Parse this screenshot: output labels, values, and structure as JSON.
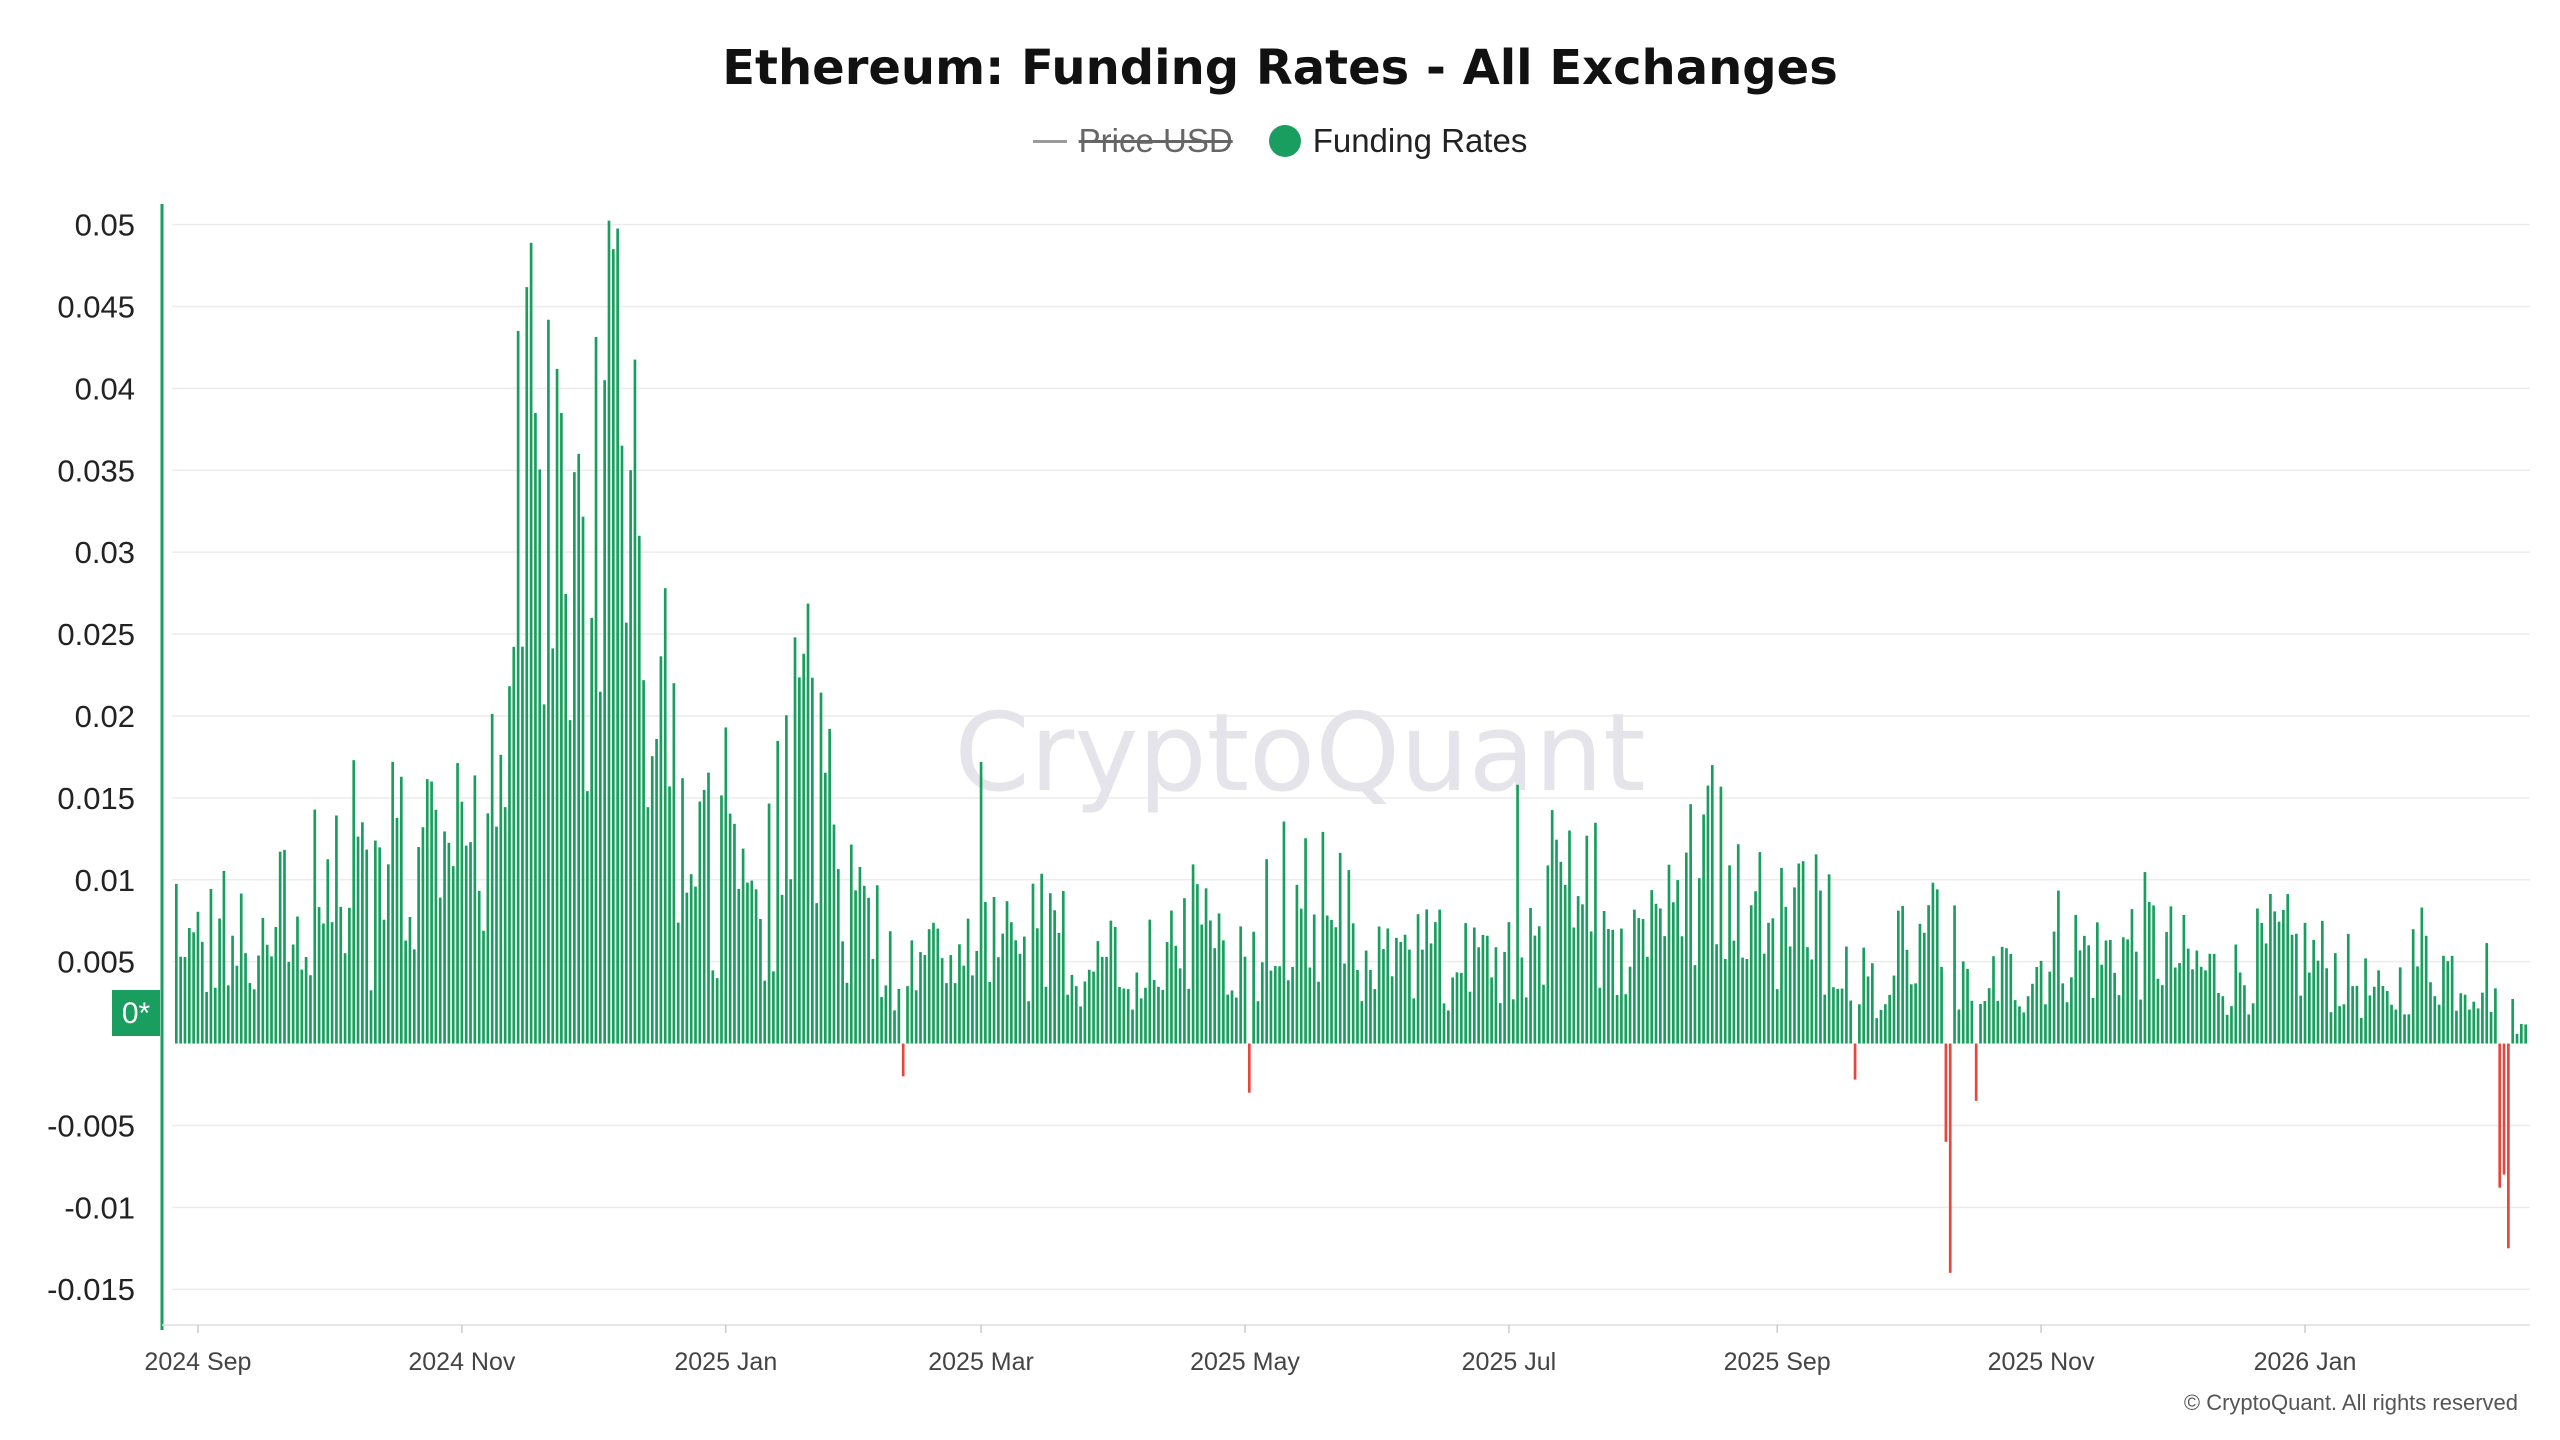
{
  "colors": {
    "positive": "#1a9e5f",
    "negative": "#e8453c",
    "legend_price": "#9a9a9a",
    "grid": "#ececec",
    "axis": "#1a9e5f"
  },
  "legend": [
    {
      "label": "Price USD",
      "icon": "line-icon",
      "disabled": true
    },
    {
      "label": "Funding Rates",
      "icon": "dot-icon",
      "disabled": false
    }
  ],
  "watermark": "CryptoQuant",
  "credit": "© CryptoQuant. All rights reserved",
  "zero_marker": "0*",
  "chart_data": {
    "type": "bar",
    "title": "Ethereum: Funding Rates - All Exchanges",
    "xlabel": "",
    "ylabel": "",
    "ylim": [
      -0.017,
      0.0515
    ],
    "x_range": [
      "2024-08-26",
      "2026-02-22"
    ],
    "y_ticks": [
      "0.05",
      "0.045",
      "0.04",
      "0.035",
      "0.03",
      "0.025",
      "0.02",
      "0.015",
      "0.01",
      "0.005",
      "-0.005",
      "-0.01",
      "-0.015"
    ],
    "y_tick_values": [
      0.05,
      0.045,
      0.04,
      0.035,
      0.03,
      0.025,
      0.02,
      0.015,
      0.01,
      0.005,
      -0.005,
      -0.01,
      -0.015
    ],
    "x_ticks": [
      "2024 Sep",
      "2024 Nov",
      "2025 Jan",
      "2025 Mar",
      "2025 May",
      "2025 Jul",
      "2025 Sep",
      "2025 Nov",
      "2026 Jan"
    ],
    "x_tick_dates": [
      "2024-09-01",
      "2024-11-01",
      "2025-01-01",
      "2025-03-01",
      "2025-05-01",
      "2025-07-01",
      "2025-09-01",
      "2025-11-01",
      "2026-01-01"
    ],
    "grid": true,
    "legend_position": "top-center",
    "series": [
      {
        "name": "Funding Rates",
        "color_positive": "#1a9e5f",
        "color_negative": "#e8453c",
        "anchors": [
          [
            "2024-08-27",
            0.0105
          ],
          [
            "2024-09-03",
            0.0062
          ],
          [
            "2024-09-10",
            0.0075
          ],
          [
            "2024-09-18",
            0.0058
          ],
          [
            "2024-09-25",
            0.0125
          ],
          [
            "2024-10-02",
            0.0095
          ],
          [
            "2024-10-10",
            0.0088
          ],
          [
            "2024-10-17",
            0.0115
          ],
          [
            "2024-10-24",
            0.0105
          ],
          [
            "2024-10-31",
            0.0118
          ],
          [
            "2024-11-07",
            0.0175
          ],
          [
            "2024-11-12",
            0.0285
          ],
          [
            "2024-11-16",
            0.034
          ],
          [
            "2024-11-21",
            0.032
          ],
          [
            "2024-11-26",
            0.031
          ],
          [
            "2024-12-02",
            0.0335
          ],
          [
            "2024-12-07",
            0.039
          ],
          [
            "2024-12-10",
            0.03
          ],
          [
            "2024-12-15",
            0.02
          ],
          [
            "2024-12-20",
            0.013
          ],
          [
            "2024-12-26",
            0.0108
          ],
          [
            "2025-01-03",
            0.0105
          ],
          [
            "2025-01-09",
            0.009
          ],
          [
            "2025-01-16",
            0.0145
          ],
          [
            "2025-01-21",
            0.0185
          ],
          [
            "2025-01-27",
            0.0095
          ],
          [
            "2025-02-02",
            0.008
          ],
          [
            "2025-02-06",
            0.0065
          ],
          [
            "2025-02-10",
            0.0035
          ],
          [
            "2025-02-20",
            0.0055
          ],
          [
            "2025-03-04",
            0.006
          ],
          [
            "2025-03-15",
            0.0068
          ],
          [
            "2025-03-25",
            0.0055
          ],
          [
            "2025-04-05",
            0.0045
          ],
          [
            "2025-04-15",
            0.008
          ],
          [
            "2025-04-25",
            0.006
          ],
          [
            "2025-05-05",
            0.0075
          ],
          [
            "2025-05-13",
            0.0095
          ],
          [
            "2025-05-22",
            0.0078
          ],
          [
            "2025-06-02",
            0.0048
          ],
          [
            "2025-06-15",
            0.0055
          ],
          [
            "2025-06-25",
            0.0045
          ],
          [
            "2025-07-04",
            0.0075
          ],
          [
            "2025-07-12",
            0.0115
          ],
          [
            "2025-07-22",
            0.0088
          ],
          [
            "2025-08-01",
            0.006
          ],
          [
            "2025-08-10",
            0.009
          ],
          [
            "2025-08-18",
            0.0115
          ],
          [
            "2025-08-28",
            0.0092
          ],
          [
            "2025-09-05",
            0.0088
          ],
          [
            "2025-09-12",
            0.0078
          ],
          [
            "2025-09-18",
            0.0035
          ],
          [
            "2025-09-25",
            0.0042
          ],
          [
            "2025-10-02",
            0.0072
          ],
          [
            "2025-10-08",
            0.0075
          ],
          [
            "2025-10-15",
            0.004
          ],
          [
            "2025-10-20",
            0.0045
          ],
          [
            "2025-10-28",
            0.0042
          ],
          [
            "2025-11-05",
            0.0065
          ],
          [
            "2025-11-15",
            0.0055
          ],
          [
            "2025-11-25",
            0.0068
          ],
          [
            "2025-12-05",
            0.005
          ],
          [
            "2025-12-15",
            0.0042
          ],
          [
            "2025-12-25",
            0.0062
          ],
          [
            "2026-01-03",
            0.0055
          ],
          [
            "2026-01-12",
            0.0042
          ],
          [
            "2026-01-20",
            0.0025
          ],
          [
            "2026-01-28",
            0.006
          ],
          [
            "2026-02-05",
            0.0045
          ],
          [
            "2026-02-12",
            0.0045
          ],
          [
            "2026-02-20",
            0.001
          ]
        ],
        "spikes": [
          [
            "2024-11-14",
            0.0435
          ],
          [
            "2024-11-18",
            0.0385
          ],
          [
            "2024-11-24",
            0.0385
          ],
          [
            "2024-11-28",
            0.036
          ],
          [
            "2024-12-04",
            0.0405
          ],
          [
            "2024-12-06",
            0.0485
          ],
          [
            "2024-12-08",
            0.0365
          ],
          [
            "2024-12-10",
            0.035
          ],
          [
            "2024-12-12",
            0.031
          ],
          [
            "2024-12-18",
            0.0278
          ],
          [
            "2024-12-20",
            0.022
          ],
          [
            "2025-01-01",
            0.0193
          ],
          [
            "2025-01-17",
            0.0248
          ],
          [
            "2025-01-19",
            0.0238
          ],
          [
            "2024-10-07",
            0.0173
          ],
          [
            "2024-10-16",
            0.0172
          ],
          [
            "2025-03-01",
            0.0172
          ],
          [
            "2025-08-17",
            0.017
          ],
          [
            "2025-07-03",
            0.0158
          ],
          [
            "2024-10-25",
            0.016
          ],
          [
            "2024-12-22",
            0.0162
          ]
        ],
        "dips": [
          [
            "2025-02-11",
            -0.002
          ],
          [
            "2025-05-02",
            -0.003
          ],
          [
            "2025-09-19",
            -0.0022
          ],
          [
            "2025-10-10",
            -0.006
          ],
          [
            "2025-10-11",
            -0.014
          ],
          [
            "2025-10-17",
            -0.0035
          ],
          [
            "2026-02-15",
            -0.0088
          ],
          [
            "2026-02-16",
            -0.008
          ],
          [
            "2026-02-17",
            -0.0125
          ]
        ]
      }
    ]
  }
}
